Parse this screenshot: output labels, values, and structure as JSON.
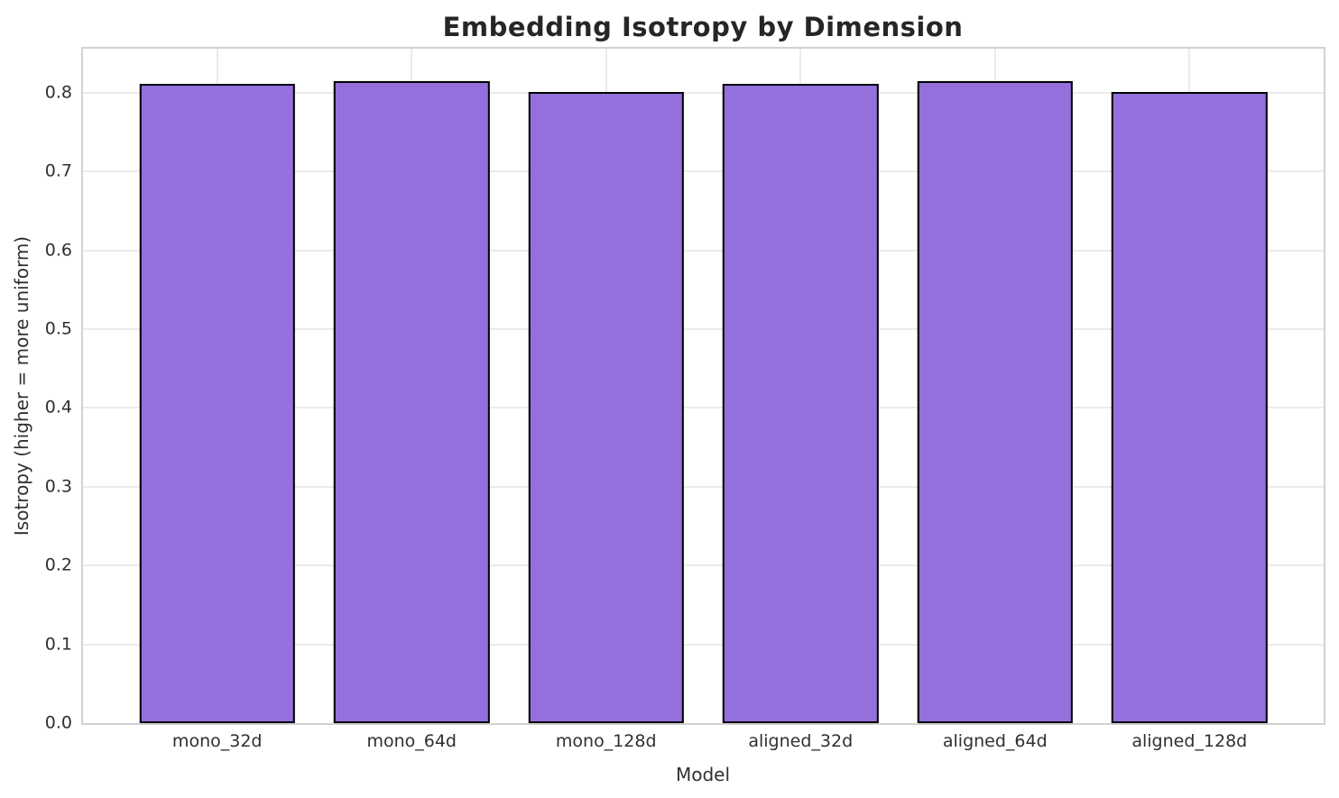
{
  "chart_data": {
    "type": "bar",
    "title": "Embedding Isotropy by Dimension",
    "xlabel": "Model",
    "ylabel": "Isotropy (higher = more uniform)",
    "categories": [
      "mono_32d",
      "mono_64d",
      "mono_128d",
      "aligned_32d",
      "aligned_64d",
      "aligned_128d"
    ],
    "values": [
      0.811,
      0.815,
      0.801,
      0.811,
      0.815,
      0.801
    ],
    "ylim": [
      0,
      0.856
    ],
    "yticks": [
      0.0,
      0.1,
      0.2,
      0.3,
      0.4,
      0.5,
      0.6,
      0.7,
      0.8
    ],
    "ytick_labels": [
      "0.0",
      "0.1",
      "0.2",
      "0.3",
      "0.4",
      "0.5",
      "0.6",
      "0.7",
      "0.8"
    ],
    "grid": true,
    "legend": "none",
    "colors": {
      "bar_fill": "#9370db",
      "bar_edge": "#000000",
      "gridline": "#ebebeb",
      "spine": "#d2d2d2",
      "tick_text": "#303030",
      "title_text": "#262626",
      "background": "#ffffff"
    }
  }
}
